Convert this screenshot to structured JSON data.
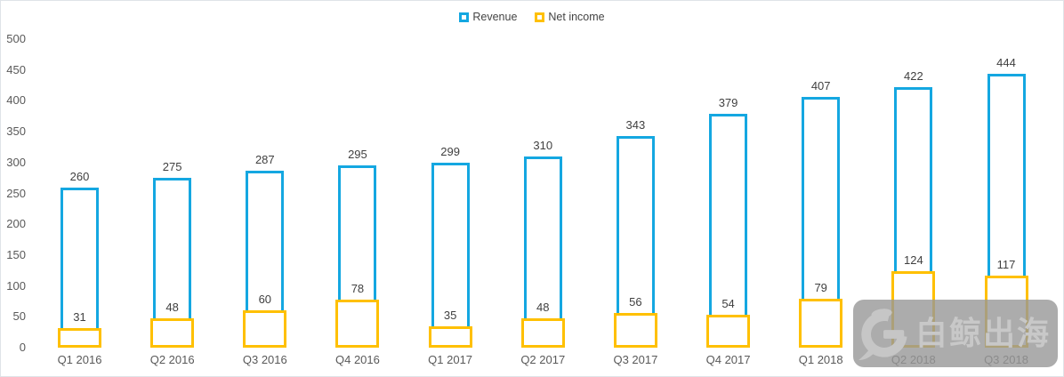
{
  "chart_data": {
    "type": "bar",
    "title": "",
    "xlabel": "",
    "ylabel": "",
    "categories": [
      "Q1 2016",
      "Q2 2016",
      "Q3 2016",
      "Q4 2016",
      "Q1 2017",
      "Q2 2017",
      "Q3 2017",
      "Q4 2017",
      "Q1 2018",
      "Q2 2018",
      "Q3 2018"
    ],
    "series": [
      {
        "name": "Revenue",
        "color": "#14A7E1",
        "values": [
          260,
          275,
          287,
          295,
          299,
          310,
          343,
          379,
          407,
          422,
          444
        ]
      },
      {
        "name": "Net income",
        "color": "#FFC000",
        "values": [
          31,
          48,
          60,
          78,
          35,
          48,
          56,
          54,
          79,
          124,
          117
        ]
      }
    ],
    "ylim": [
      0,
      500
    ],
    "yticks": [
      0,
      50,
      100,
      150,
      200,
      250,
      300,
      350,
      400,
      450,
      500
    ],
    "grid": false,
    "legend_position": "top-center",
    "bar_style": "outlined-white-fill-overlapped",
    "data_labels": true
  },
  "watermark": {
    "text": "白鲸出海",
    "logo": "whale-g-logo"
  },
  "colors": {
    "revenue": "#14A7E1",
    "net_income": "#FFC000",
    "axis_text": "#595959",
    "data_label_text": "#404040",
    "watermark_bg": "rgba(151,151,151,0.8)",
    "watermark_fg": "#C8C8C8"
  }
}
